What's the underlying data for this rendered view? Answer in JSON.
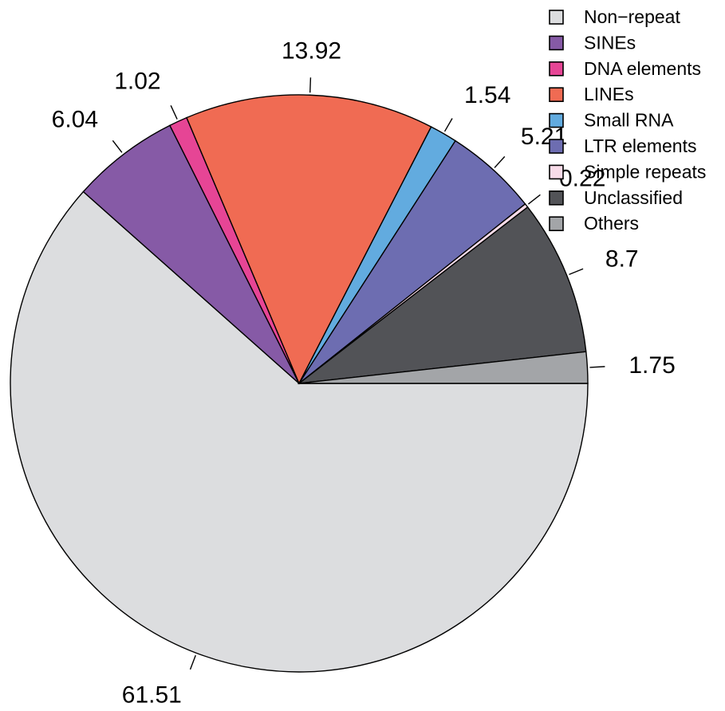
{
  "chart_data": {
    "type": "pie",
    "title": "",
    "legend_position": "top-right",
    "start_angle": "0 degrees (3 o'clock)",
    "direction": "clockwise",
    "slices": [
      {
        "name": "Non−repeat",
        "value": 61.51,
        "label": "61.51",
        "color": "#DCDDDF"
      },
      {
        "name": "SINEs",
        "value": 6.04,
        "label": "6.04",
        "color": "#865AA6"
      },
      {
        "name": "DNA elements",
        "value": 1.02,
        "label": "1.02",
        "color": "#E64595"
      },
      {
        "name": "LINEs",
        "value": 13.92,
        "label": "13.92",
        "color": "#F06B53"
      },
      {
        "name": "Small RNA",
        "value": 1.54,
        "label": "1.54",
        "color": "#62ABDF"
      },
      {
        "name": "LTR elements",
        "value": 5.21,
        "label": "5.21",
        "color": "#6D6DB1"
      },
      {
        "name": "Simple repeats",
        "value": 0.22,
        "label": "0.22",
        "color": "#F9DCE9"
      },
      {
        "name": "Unclassified",
        "value": 8.7,
        "label": "8.7",
        "color": "#525357"
      },
      {
        "name": "Others",
        "value": 1.75,
        "label": "1.75",
        "color": "#A3A5A8"
      }
    ]
  }
}
